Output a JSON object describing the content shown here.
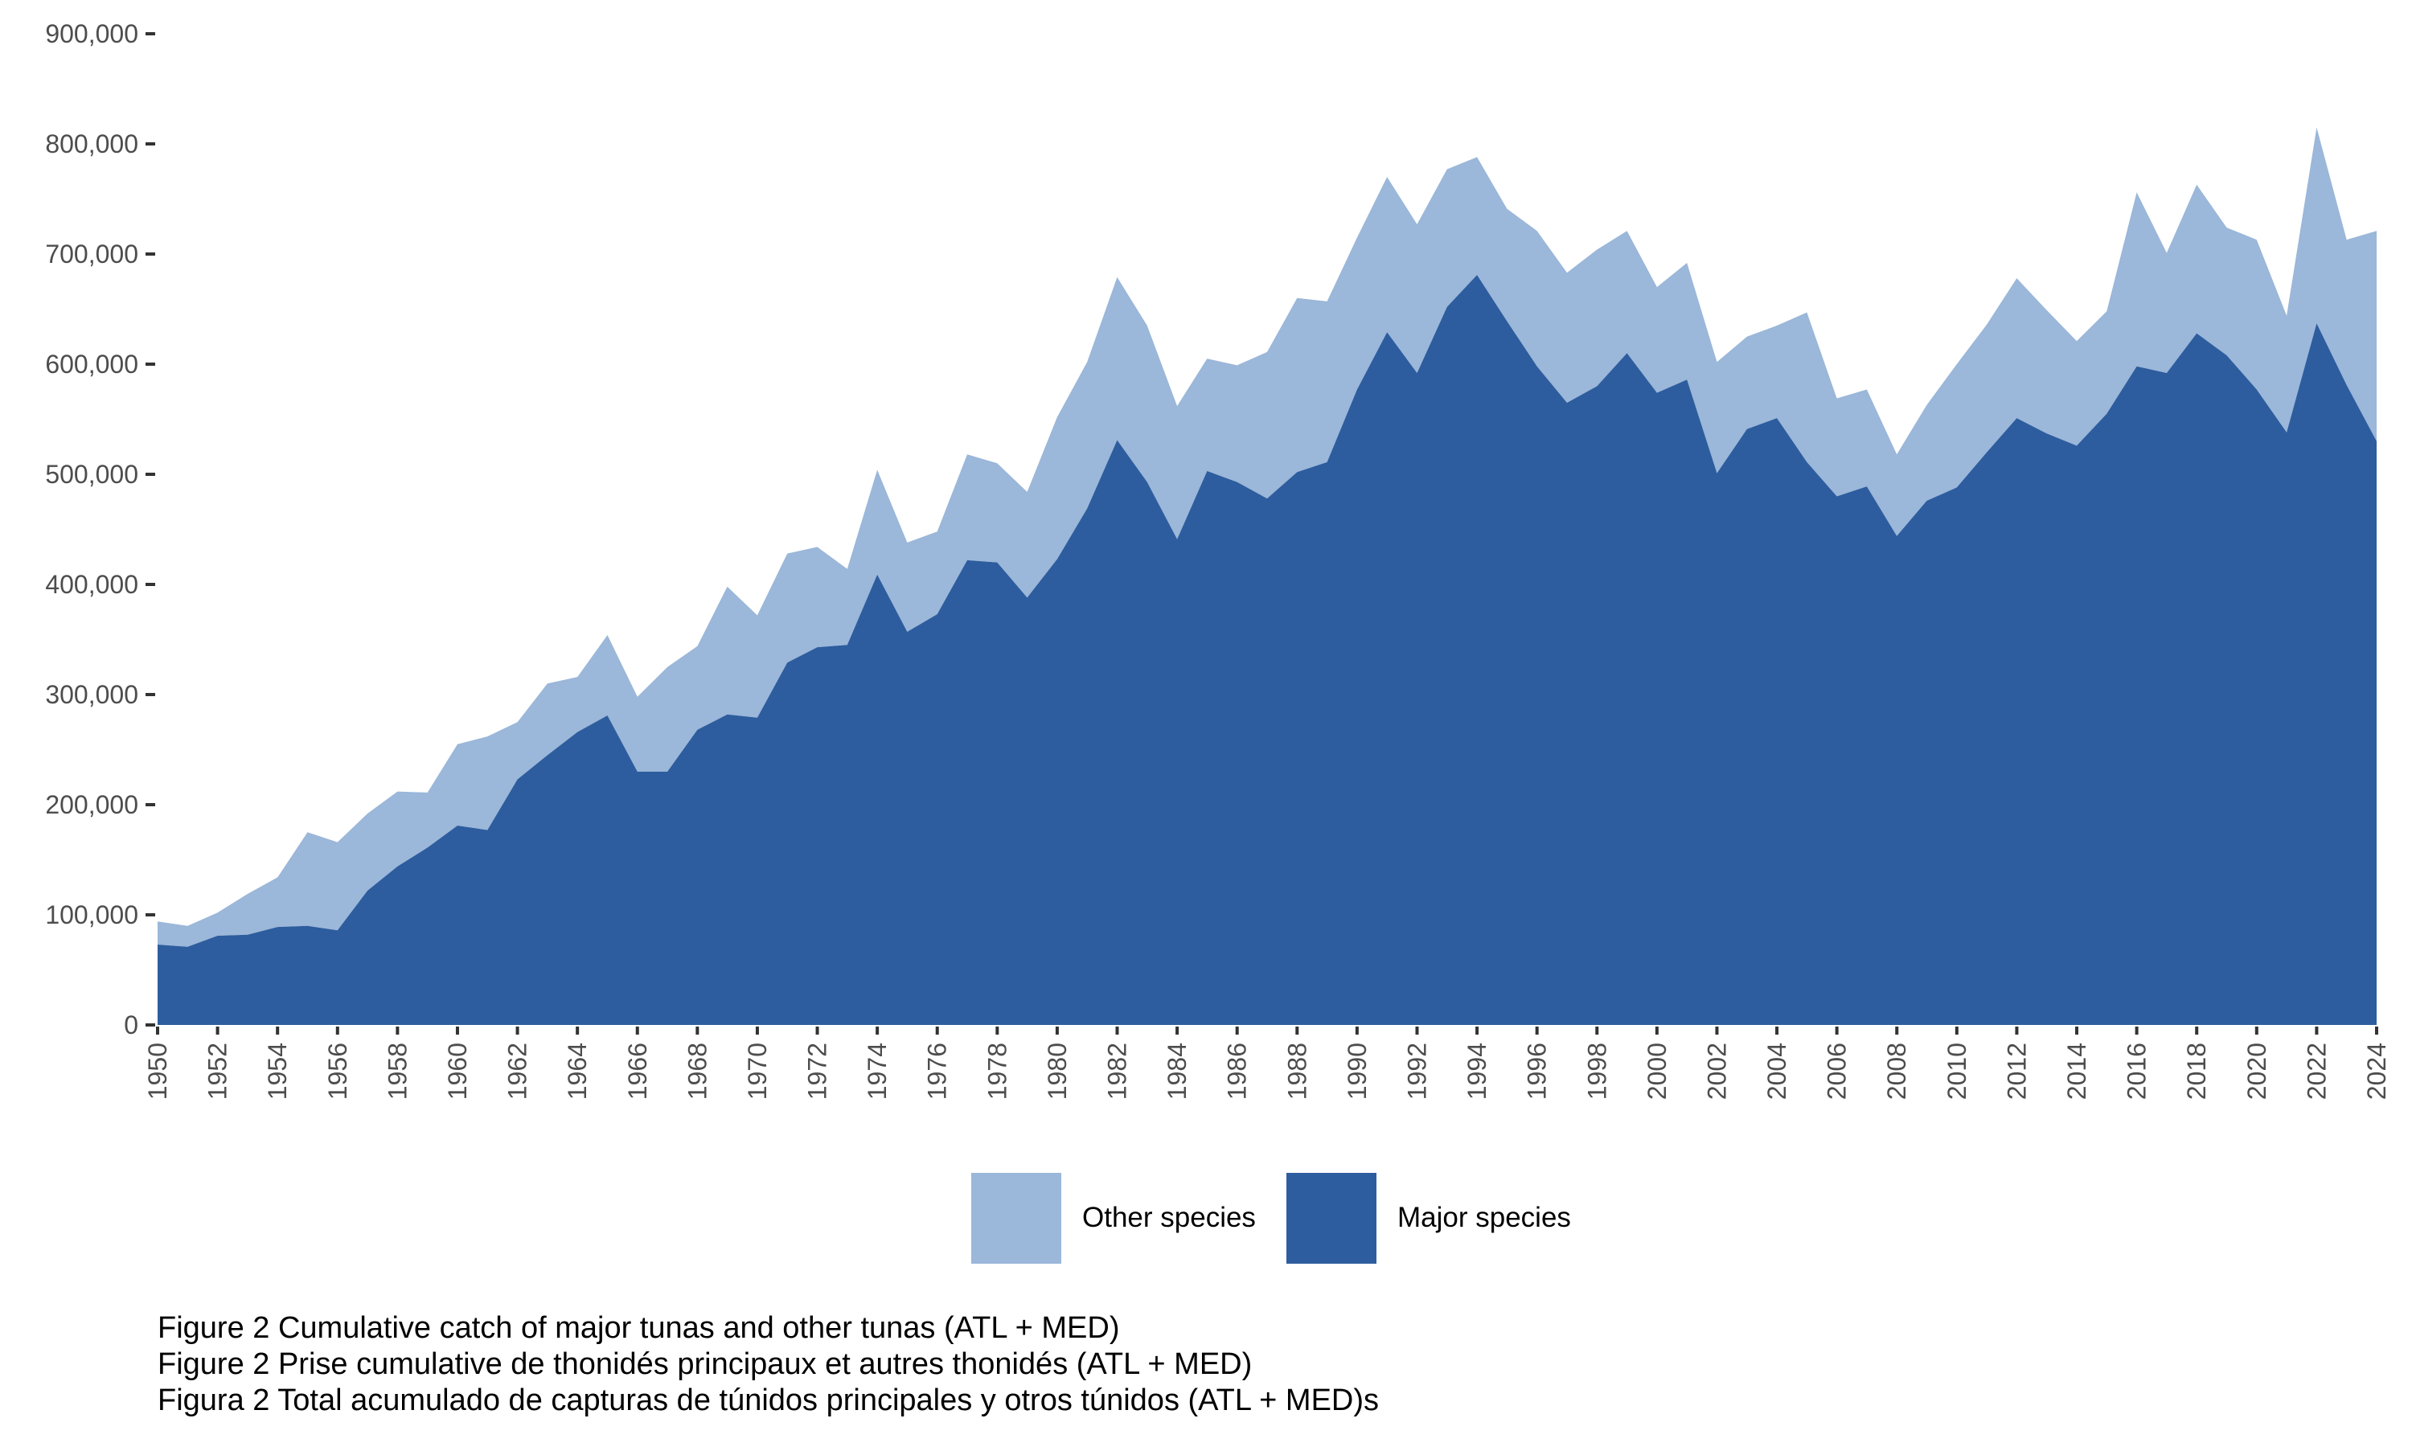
{
  "chart_data": {
    "type": "area",
    "stacked": true,
    "title": "",
    "xlabel": "",
    "ylabel": "",
    "x": [
      1950,
      1951,
      1952,
      1953,
      1954,
      1955,
      1956,
      1957,
      1958,
      1959,
      1960,
      1961,
      1962,
      1963,
      1964,
      1965,
      1966,
      1967,
      1968,
      1969,
      1970,
      1971,
      1972,
      1973,
      1974,
      1975,
      1976,
      1977,
      1978,
      1979,
      1980,
      1981,
      1982,
      1983,
      1984,
      1985,
      1986,
      1987,
      1988,
      1989,
      1990,
      1991,
      1992,
      1993,
      1994,
      1995,
      1996,
      1997,
      1998,
      1999,
      2000,
      2001,
      2002,
      2003,
      2004,
      2005,
      2006,
      2007,
      2008,
      2009,
      2010,
      2011,
      2012,
      2013,
      2014,
      2015,
      2016,
      2017,
      2018,
      2019,
      2020,
      2021,
      2022,
      2023,
      2024
    ],
    "series": [
      {
        "name": "Major species",
        "color": "#2d5d9e",
        "values": [
          73000,
          71000,
          81000,
          82000,
          89000,
          90000,
          86000,
          122000,
          144000,
          161000,
          181000,
          177000,
          223000,
          245000,
          266000,
          281000,
          230000,
          230000,
          268000,
          282000,
          279000,
          329000,
          343000,
          345000,
          409000,
          357000,
          373000,
          422000,
          420000,
          388000,
          423000,
          469000,
          531000,
          493000,
          441000,
          503000,
          493000,
          478000,
          502000,
          511000,
          577000,
          629000,
          592000,
          652000,
          681000,
          639000,
          598000,
          565000,
          580000,
          610000,
          574000,
          586000,
          501000,
          541000,
          551000,
          511000,
          480000,
          489000,
          444000,
          476000,
          488000,
          520000,
          551000,
          537000,
          526000,
          555000,
          598000,
          592000,
          628000,
          608000,
          577000,
          538000,
          637000,
          581000,
          530000
        ]
      },
      {
        "name": "Other species",
        "color": "#9bb7d9",
        "values": [
          21000,
          19000,
          21000,
          37000,
          45000,
          85000,
          80000,
          70000,
          68000,
          50000,
          74000,
          85000,
          52000,
          65000,
          50000,
          73000,
          68000,
          95000,
          76000,
          116000,
          93000,
          99000,
          91000,
          69000,
          95000,
          81000,
          75000,
          96000,
          90000,
          96000,
          129000,
          133000,
          148000,
          142000,
          121000,
          102000,
          106000,
          133000,
          158000,
          146000,
          138000,
          141000,
          135000,
          125000,
          107000,
          102000,
          123000,
          118000,
          124000,
          111000,
          96000,
          106000,
          101000,
          84000,
          84000,
          136000,
          89000,
          88000,
          74000,
          87000,
          112000,
          116000,
          127000,
          112000,
          95000,
          93000,
          158000,
          109000,
          135000,
          116000,
          136000,
          106000,
          178000,
          132000,
          191000
        ]
      }
    ],
    "totals_note": "stacked: top of light area = Major + Other",
    "y_ticks": [
      0,
      100000,
      200000,
      300000,
      400000,
      500000,
      600000,
      700000,
      800000,
      900000
    ],
    "y_tick_labels": [
      "0",
      "100,000",
      "200,000",
      "300,000",
      "400,000",
      "500,000",
      "600,000",
      "700,000",
      "800,000",
      "900,000"
    ],
    "x_tick_labels": [
      "1950",
      "1952",
      "1954",
      "1956",
      "1958",
      "1960",
      "1962",
      "1964",
      "1966",
      "1968",
      "1970",
      "1972",
      "1974",
      "1976",
      "1978",
      "1980",
      "1982",
      "1984",
      "1986",
      "1988",
      "1990",
      "1992",
      "1994",
      "1996",
      "1998",
      "2000",
      "2002",
      "2004",
      "2006",
      "2008",
      "2010",
      "2012",
      "2014",
      "2016",
      "2018",
      "2020",
      "2022",
      "2024"
    ],
    "ylim": [
      0,
      900000
    ],
    "xlim": [
      1950,
      2024
    ],
    "grid": false,
    "legend": {
      "placement": "bottom",
      "entries": [
        {
          "label": "Other species",
          "color": "#9bb7d9"
        },
        {
          "label": "Major species",
          "color": "#2d5d9e"
        }
      ]
    }
  },
  "caption": {
    "lines": [
      "Figure 2 Cumulative catch of major tunas and other tunas (ATL + MED)",
      "Figure 2 Prise cumulative de thonidés principaux et autres thonidés (ATL + MED)",
      "Figura 2 Total acumulado de capturas de túnidos principales y otros túnidos (ATL + MED)s"
    ]
  },
  "colors": {
    "axis": "#333333",
    "tick_text": "#4d4d4d"
  }
}
